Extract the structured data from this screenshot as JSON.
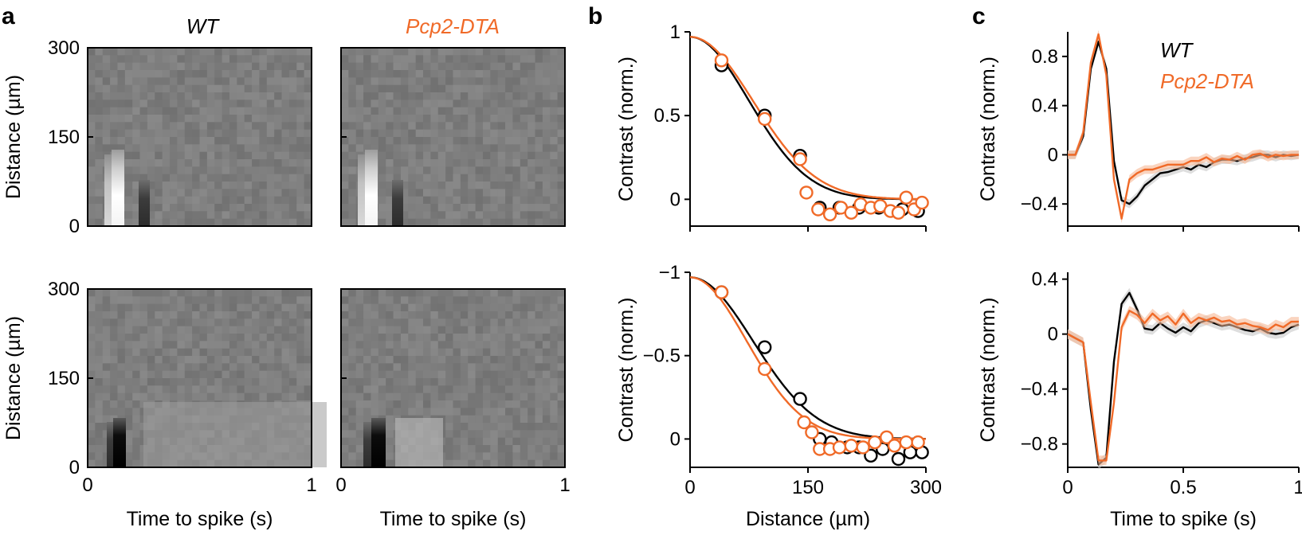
{
  "colors": {
    "wt": "#000000",
    "mutant": "#f06a28",
    "band": "#c8c8c8"
  },
  "panel_labels": [
    "a",
    "b",
    "c"
  ],
  "panel_a": {
    "col_titles": [
      "WT",
      "Pcp2-DTA"
    ],
    "ylabel": "Distance (µm)",
    "xlabel": "Time to spike (s)",
    "yticks": [
      "0",
      "150",
      "300"
    ],
    "xticks": [
      "0",
      "1"
    ]
  },
  "chart_data": [
    {
      "type": "heatmap",
      "panel": "a",
      "row": "top",
      "group": "WT",
      "xlim": [
        0,
        1
      ],
      "ylim": [
        0,
        300
      ],
      "note": "spatiotemporal receptive field, bright ON center near t=0.15 s, 0–130 µm"
    },
    {
      "type": "heatmap",
      "panel": "a",
      "row": "top",
      "group": "Pcp2-DTA",
      "xlim": [
        0,
        1
      ],
      "ylim": [
        0,
        300
      ],
      "note": "spatiotemporal receptive field, bright ON center near t=0.15 s, 0–130 µm"
    },
    {
      "type": "heatmap",
      "panel": "a",
      "row": "bottom",
      "group": "WT",
      "xlim": [
        0,
        1
      ],
      "ylim": [
        0,
        300
      ],
      "note": "spatiotemporal receptive field, dark OFF center near t=0.15 s, 0–90 µm"
    },
    {
      "type": "heatmap",
      "panel": "a",
      "row": "bottom",
      "group": "Pcp2-DTA",
      "xlim": [
        0,
        1
      ],
      "ylim": [
        0,
        300
      ],
      "note": "spatiotemporal receptive field, dark OFF center near t=0.15 s, 0–90 µm"
    },
    {
      "type": "scatter",
      "panel": "b",
      "row": "top",
      "xlabel": "Distance (µm)",
      "ylabel": "Contrast (norm.)",
      "xlim": [
        0,
        300
      ],
      "ylim": [
        -0.16,
        1.0
      ],
      "xticks": [
        "0",
        "150",
        "300"
      ],
      "yticks": [
        {
          "v": 0,
          "label": "0"
        },
        {
          "v": 0.5,
          "label": "0.5"
        },
        {
          "v": 1,
          "label": "1"
        }
      ],
      "series": [
        {
          "name": "WT",
          "x": [
            40,
            95,
            140,
            165,
            190,
            215,
            240,
            270,
            290
          ],
          "y": [
            0.8,
            0.5,
            0.26,
            -0.05,
            -0.05,
            -0.05,
            -0.05,
            -0.06,
            -0.07
          ]
        },
        {
          "name": "Pcp2-DTA",
          "x": [
            40,
            95,
            140,
            148,
            163,
            178,
            192,
            205,
            217,
            230,
            242,
            255,
            265,
            275,
            285,
            295
          ],
          "y": [
            0.83,
            0.48,
            0.24,
            0.04,
            -0.06,
            -0.09,
            -0.05,
            -0.08,
            -0.03,
            -0.05,
            -0.04,
            -0.07,
            -0.08,
            0.01,
            -0.06,
            -0.02
          ]
        }
      ],
      "fits": [
        {
          "name": "WT",
          "a": 0.97,
          "sigma": 75
        },
        {
          "name": "Pcp2-DTA",
          "a": 0.97,
          "sigma": 80
        }
      ]
    },
    {
      "type": "scatter",
      "panel": "b",
      "row": "bottom",
      "xlabel": "Distance (µm)",
      "ylabel": "Contrast (norm.)",
      "xlim": [
        0,
        300
      ],
      "ylim": [
        0.17,
        -1.0
      ],
      "xticks": [
        "0",
        "150",
        "300"
      ],
      "yticks": [
        {
          "v": 0,
          "label": "0"
        },
        {
          "v": -0.5,
          "label": "−0.5"
        },
        {
          "v": -1,
          "label": "−1"
        }
      ],
      "series": [
        {
          "name": "WT",
          "x": [
            40,
            95,
            140,
            165,
            180,
            200,
            215,
            230,
            245,
            265,
            280,
            295
          ],
          "y": [
            -0.88,
            -0.55,
            -0.24,
            0.0,
            0.02,
            0.05,
            0.05,
            0.1,
            0.06,
            0.12,
            0.08,
            0.08
          ]
        },
        {
          "name": "Pcp2-DTA",
          "x": [
            40,
            95,
            145,
            155,
            165,
            178,
            190,
            205,
            220,
            235,
            250,
            260,
            275,
            290
          ],
          "y": [
            -0.88,
            -0.42,
            -0.1,
            -0.04,
            0.06,
            0.06,
            0.05,
            0.04,
            0.05,
            0.02,
            -0.01,
            0.04,
            0.02,
            0.02
          ]
        }
      ],
      "fits": [
        {
          "name": "WT",
          "a": -0.97,
          "sigma": 80
        },
        {
          "name": "Pcp2-DTA",
          "a": -0.97,
          "sigma": 72
        }
      ]
    },
    {
      "type": "line",
      "panel": "c",
      "row": "top",
      "xlabel": "Time to spike (s)",
      "ylabel": "Contrast (norm.)",
      "xlim": [
        0,
        1
      ],
      "ylim": [
        -0.58,
        1.0
      ],
      "xticks": [
        "0",
        "0.5",
        "1"
      ],
      "yticks": [
        {
          "v": -0.4,
          "label": "−0.4"
        },
        {
          "v": 0,
          "label": "0"
        },
        {
          "v": 0.4,
          "label": "0.4"
        },
        {
          "v": 0.8,
          "label": "0.8"
        }
      ],
      "legend": [
        "WT",
        "Pcp2-DTA"
      ],
      "series": [
        {
          "name": "WT",
          "x": [
            0,
            0.033,
            0.067,
            0.1,
            0.133,
            0.167,
            0.2,
            0.233,
            0.267,
            0.3,
            0.333,
            0.367,
            0.4,
            0.433,
            0.467,
            0.5,
            0.533,
            0.567,
            0.6,
            0.633,
            0.667,
            0.7,
            0.733,
            0.767,
            0.8,
            0.833,
            0.867,
            0.9,
            0.933,
            0.967,
            1.0
          ],
          "y": [
            0,
            0,
            0.15,
            0.7,
            0.92,
            0.7,
            -0.05,
            -0.37,
            -0.4,
            -0.34,
            -0.25,
            -0.2,
            -0.15,
            -0.14,
            -0.12,
            -0.1,
            -0.12,
            -0.08,
            -0.1,
            -0.06,
            -0.04,
            -0.04,
            -0.05,
            -0.03,
            -0.02,
            0.0,
            0.0,
            -0.02,
            0.0,
            -0.01,
            0.0
          ]
        },
        {
          "name": "Pcp2-DTA",
          "x": [
            0,
            0.033,
            0.067,
            0.1,
            0.133,
            0.167,
            0.2,
            0.233,
            0.267,
            0.3,
            0.333,
            0.367,
            0.4,
            0.433,
            0.467,
            0.5,
            0.533,
            0.567,
            0.6,
            0.633,
            0.667,
            0.7,
            0.733,
            0.767,
            0.8,
            0.833,
            0.867,
            0.9,
            0.933,
            0.967,
            1.0
          ],
          "y": [
            0,
            0,
            0.18,
            0.75,
            0.98,
            0.65,
            -0.2,
            -0.52,
            -0.2,
            -0.15,
            -0.12,
            -0.12,
            -0.1,
            -0.08,
            -0.08,
            -0.08,
            -0.05,
            -0.05,
            -0.02,
            -0.06,
            -0.03,
            -0.04,
            -0.01,
            -0.04,
            0.0,
            0.01,
            -0.02,
            0.0,
            -0.01,
            0.0,
            0.0
          ]
        }
      ]
    },
    {
      "type": "line",
      "panel": "c",
      "row": "bottom",
      "xlabel": "Time to spike (s)",
      "ylabel": "Contrast (norm.)",
      "xlim": [
        0,
        1
      ],
      "ylim": [
        -0.97,
        0.45
      ],
      "xticks": [
        "0",
        "0.5",
        "1"
      ],
      "yticks": [
        {
          "v": -0.8,
          "label": "−0.8"
        },
        {
          "v": -0.4,
          "label": "−0.4"
        },
        {
          "v": 0,
          "label": "0"
        },
        {
          "v": 0.4,
          "label": "0.4"
        }
      ],
      "series": [
        {
          "name": "WT",
          "x": [
            0,
            0.033,
            0.067,
            0.1,
            0.133,
            0.167,
            0.2,
            0.233,
            0.267,
            0.3,
            0.333,
            0.367,
            0.4,
            0.433,
            0.467,
            0.5,
            0.533,
            0.567,
            0.6,
            0.633,
            0.667,
            0.7,
            0.733,
            0.767,
            0.8,
            0.833,
            0.867,
            0.9,
            0.933,
            0.967,
            1.0
          ],
          "y": [
            0,
            -0.03,
            -0.06,
            -0.55,
            -0.95,
            -0.9,
            -0.2,
            0.22,
            0.3,
            0.18,
            0.04,
            0.03,
            0.08,
            0.04,
            0.01,
            0.05,
            0.02,
            0.08,
            0.1,
            0.08,
            0.06,
            0.07,
            0.05,
            0.03,
            0.02,
            0.04,
            0.01,
            0.0,
            0.01,
            0.05,
            0.07
          ]
        },
        {
          "name": "Pcp2-DTA",
          "x": [
            0,
            0.033,
            0.067,
            0.1,
            0.133,
            0.167,
            0.2,
            0.233,
            0.267,
            0.3,
            0.333,
            0.367,
            0.4,
            0.433,
            0.467,
            0.5,
            0.533,
            0.567,
            0.6,
            0.633,
            0.667,
            0.7,
            0.733,
            0.767,
            0.8,
            0.833,
            0.867,
            0.9,
            0.933,
            0.967,
            1.0
          ],
          "y": [
            0,
            -0.03,
            -0.06,
            -0.5,
            -0.92,
            -0.92,
            -0.5,
            0.05,
            0.17,
            0.14,
            0.08,
            0.15,
            0.1,
            0.13,
            0.07,
            0.15,
            0.08,
            0.12,
            0.1,
            0.12,
            0.09,
            0.1,
            0.07,
            0.08,
            0.06,
            0.05,
            0.03,
            0.07,
            0.05,
            0.09,
            0.09
          ]
        }
      ]
    }
  ]
}
